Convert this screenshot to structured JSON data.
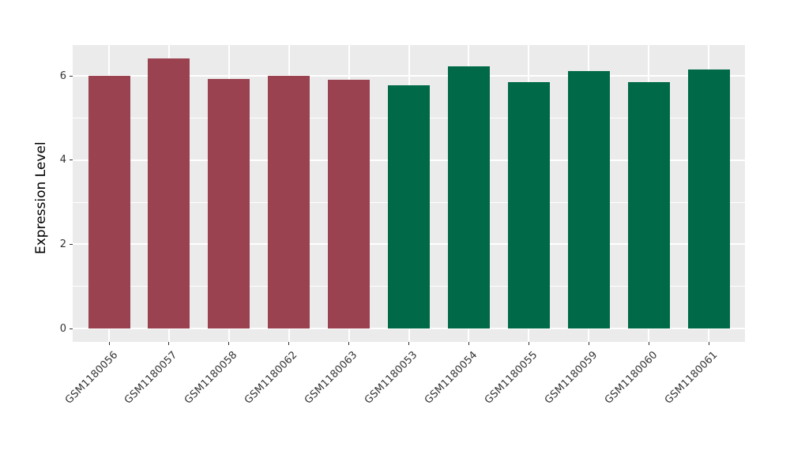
{
  "figure": {
    "background": "#FFFFFF",
    "panel_background": "#EBEBEB",
    "grid_color": "#FFFFFF",
    "axis_text_color": "#333333",
    "bar_color_left_group": "#9B4250",
    "bar_color_right_group": "#006948"
  },
  "chart_data": {
    "type": "bar",
    "title": "",
    "xlabel": "",
    "ylabel": "Expression Level",
    "categories": [
      "GSM1180056",
      "GSM1180057",
      "GSM1180058",
      "GSM1180062",
      "GSM1180063",
      "GSM1180053",
      "GSM1180054",
      "GSM1180055",
      "GSM1180059",
      "GSM1180060",
      "GSM1180061"
    ],
    "values": [
      6.0,
      6.41,
      5.93,
      6.01,
      5.91,
      5.77,
      6.23,
      5.86,
      6.12,
      5.85,
      6.16
    ],
    "bar_colors": [
      "#9B4250",
      "#9B4250",
      "#9B4250",
      "#9B4250",
      "#9B4250",
      "#006948",
      "#006948",
      "#006948",
      "#006948",
      "#006948",
      "#006948"
    ],
    "yticks": [
      0,
      2,
      4,
      6
    ],
    "yticks_minor": [
      1,
      3,
      5
    ],
    "ylim": [
      0,
      6.73
    ],
    "grid": true,
    "legend": false
  }
}
